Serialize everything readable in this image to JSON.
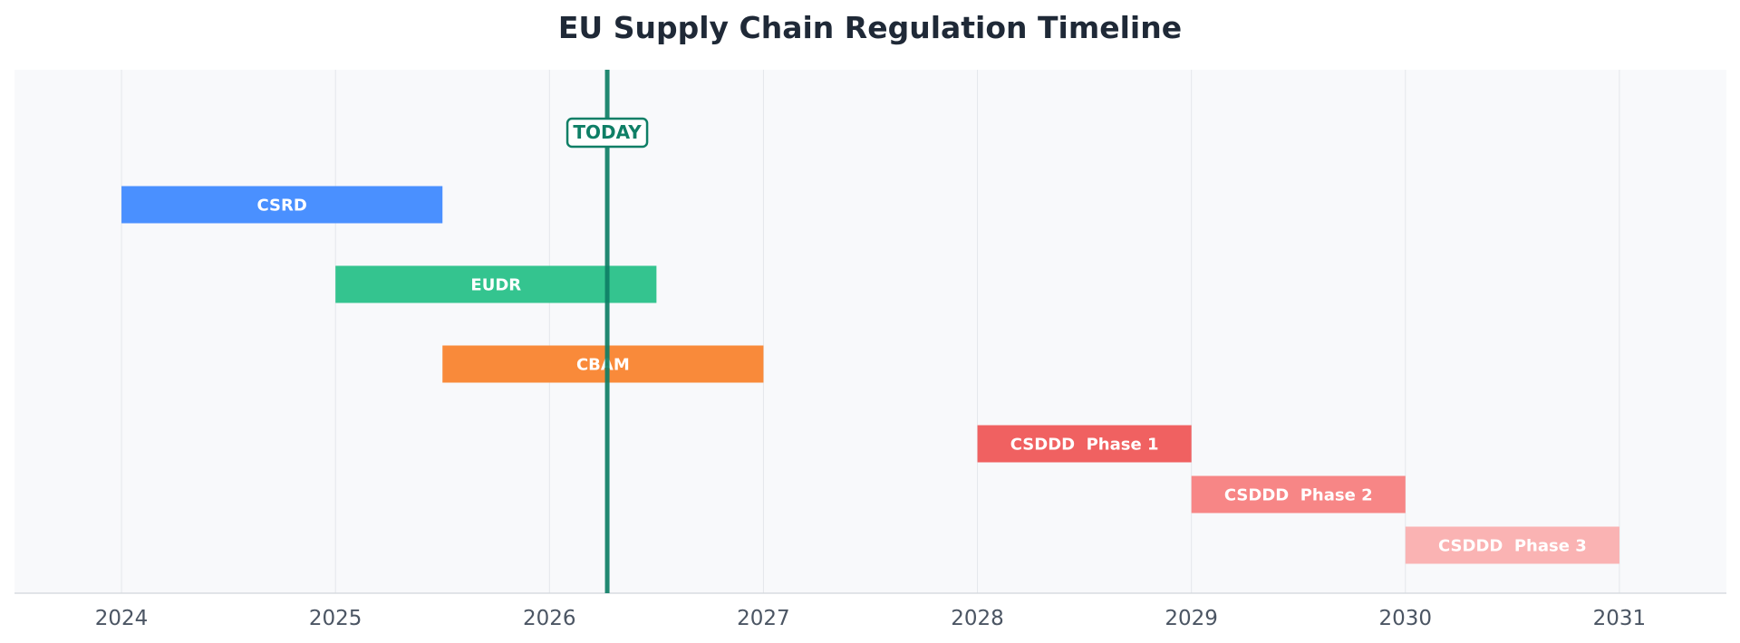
{
  "chart_data": {
    "type": "gantt",
    "title": "EU Supply Chain Regulation Timeline",
    "xlabel": "",
    "ylabel": "",
    "xlim": [
      2023.5,
      2031.5
    ],
    "x_ticks": [
      "2024",
      "2025",
      "2026",
      "2027",
      "2028",
      "2029",
      "2030",
      "2031"
    ],
    "grid": true,
    "today": {
      "label": "TODAY",
      "value": 2026.27,
      "color": "#0f7f66"
    },
    "tasks": [
      {
        "name": "CSRD",
        "start": 2024.0,
        "end": 2025.5,
        "color": "#4a90ff"
      },
      {
        "name": "EUDR",
        "start": 2025.0,
        "end": 2026.5,
        "color": "#34c48f"
      },
      {
        "name": "CBAM",
        "start": 2025.5,
        "end": 2027.0,
        "color": "#f98a3a"
      },
      {
        "name": "CSDDD  Phase 1",
        "start": 2028.0,
        "end": 2029.0,
        "color": "#f06161"
      },
      {
        "name": "CSDDD  Phase 2",
        "start": 2029.0,
        "end": 2030.0,
        "color": "#f78686"
      },
      {
        "name": "CSDDD  Phase 3",
        "start": 2030.0,
        "end": 2031.0,
        "color": "#fab3b3"
      }
    ]
  }
}
